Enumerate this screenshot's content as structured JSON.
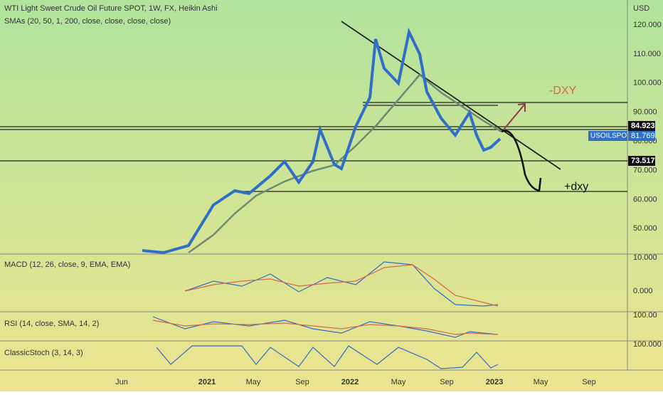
{
  "header": {
    "title": "WTI Light Sweet Crude Oil Future SPOT, 1W, FX, Heikin Ashi",
    "indicator": "SMAs (20, 50, 1, 200, close, close, close, close)"
  },
  "price_axis": {
    "unit": "USD",
    "ticks": [
      "120.000",
      "110.000",
      "100.000",
      "90.000",
      "80.000",
      "70.000",
      "60.000",
      "50.000"
    ]
  },
  "price_labels": {
    "upper": "84.923",
    "symbol": "USOILSPOT",
    "last": "81.769",
    "lower": "73.517"
  },
  "annotations": {
    "up": "-DXY",
    "down": "+dxy"
  },
  "panels": [
    {
      "title": "MACD (12, 26, close, 9, EMA, EMA)",
      "ticks": [
        "10.000",
        "0.000"
      ]
    },
    {
      "title": "RSI (14, close, SMA, 14, 2)",
      "ticks": [
        "100.00"
      ]
    },
    {
      "title": "ClassicStoch (3, 14, 3)",
      "ticks": [
        "100.000"
      ]
    }
  ],
  "time_axis": [
    "Jun",
    "2021",
    "May",
    "Sep",
    "2022",
    "May",
    "Sep",
    "2023",
    "May",
    "Sep"
  ]
}
